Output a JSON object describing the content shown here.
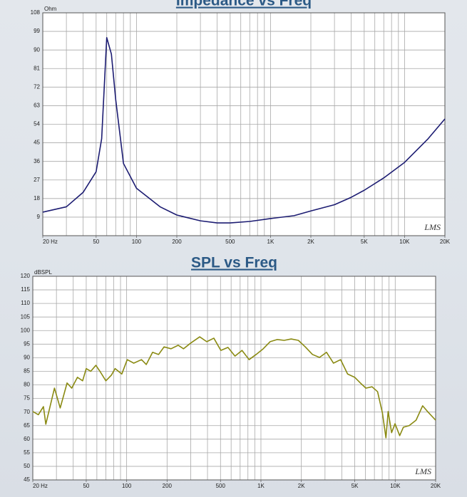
{
  "chart_data": [
    {
      "type": "line",
      "title": "Impedance vs Freq",
      "y_label": "Ohm",
      "watermark": "LMS",
      "xscale": "log",
      "xlim": [
        20,
        20000
      ],
      "xticks": [
        {
          "value": 20,
          "label": "20 Hz"
        },
        50,
        100,
        200,
        500,
        {
          "value": 1000,
          "label": "1K"
        },
        {
          "value": 2000,
          "label": "2K"
        },
        {
          "value": 5000,
          "label": "5K"
        },
        {
          "value": 10000,
          "label": "10K"
        },
        {
          "value": 20000,
          "label": "20K"
        }
      ],
      "xgrid": [
        20,
        30,
        40,
        50,
        60,
        70,
        80,
        90,
        100,
        200,
        300,
        400,
        500,
        600,
        700,
        800,
        900,
        1000,
        2000,
        3000,
        4000,
        5000,
        6000,
        7000,
        8000,
        9000,
        10000,
        20000
      ],
      "ylim": [
        0,
        108
      ],
      "yticks": [
        9,
        18,
        27,
        36,
        45,
        54,
        63,
        72,
        81,
        90,
        99,
        108
      ],
      "grid": true,
      "color": "#1c1c72",
      "x": [
        20,
        30,
        40,
        50,
        55,
        60,
        65,
        70,
        80,
        100,
        150,
        200,
        300,
        400,
        500,
        700,
        1000,
        1500,
        2000,
        3000,
        4000,
        5000,
        7000,
        10000,
        15000,
        20000
      ],
      "values": [
        11.4,
        14,
        21,
        31,
        47,
        96,
        88,
        66,
        35,
        23,
        14,
        10,
        7.2,
        6.2,
        6.2,
        6.9,
        8.3,
        9.7,
        12,
        15,
        18.6,
        22,
        28,
        35.5,
        47,
        56.6
      ]
    },
    {
      "type": "line",
      "title": "SPL vs Freq",
      "y_label": "dBSPL",
      "watermark": "LMS",
      "xscale": "log",
      "xlim": [
        20,
        20000
      ],
      "xticks": [
        {
          "value": 20,
          "label": "20 Hz"
        },
        50,
        100,
        200,
        500,
        {
          "value": 1000,
          "label": "1K"
        },
        {
          "value": 2000,
          "label": "2K"
        },
        {
          "value": 5000,
          "label": "5K"
        },
        {
          "value": 10000,
          "label": "10K"
        },
        {
          "value": 20000,
          "label": "20K"
        }
      ],
      "xgrid": [
        20,
        30,
        40,
        50,
        60,
        70,
        80,
        90,
        100,
        200,
        300,
        400,
        500,
        600,
        700,
        800,
        900,
        1000,
        2000,
        3000,
        4000,
        5000,
        6000,
        7000,
        8000,
        9000,
        10000,
        20000
      ],
      "ylim": [
        45,
        120
      ],
      "yticks": [
        45,
        50,
        55,
        60,
        65,
        70,
        75,
        80,
        85,
        90,
        95,
        100,
        105,
        110,
        115,
        120
      ],
      "grid": true,
      "color": "#8a8a12",
      "x": [
        20,
        22,
        24,
        25,
        29,
        32,
        36,
        39,
        43,
        47,
        50,
        54,
        59,
        64,
        70,
        77,
        82,
        92,
        101,
        113,
        129,
        140,
        156,
        173,
        190,
        214,
        242,
        265,
        300,
        350,
        395,
        446,
        503,
        568,
        641,
        723,
        816,
        921,
        1040,
        1170,
        1320,
        1490,
        1680,
        1900,
        2140,
        2420,
        2730,
        3080,
        3470,
        3920,
        4420,
        4990,
        5500,
        6050,
        6720,
        7390,
        8030,
        8530,
        8860,
        9400,
        9970,
        10800,
        11500,
        12700,
        14300,
        16000,
        17400,
        20000
      ],
      "values": [
        70.2,
        69,
        72,
        65.5,
        78.8,
        71.5,
        80.7,
        78.8,
        82.8,
        81.5,
        86,
        85,
        87.2,
        84.6,
        81.5,
        83.6,
        86,
        84,
        89.3,
        88,
        89.3,
        87.5,
        92,
        91.2,
        94,
        93.3,
        94.6,
        93.3,
        95.4,
        97.7,
        95.9,
        97.2,
        92.7,
        93.8,
        90.6,
        92.7,
        89.3,
        91.2,
        93.3,
        95.9,
        96.7,
        96.4,
        96.9,
        96.4,
        94,
        91.2,
        90.1,
        92,
        88,
        89.3,
        84,
        82.8,
        80.7,
        78.8,
        79.3,
        77.5,
        69.7,
        60.5,
        70.2,
        62.4,
        65.7,
        61.3,
        64.4,
        65,
        67,
        72.3,
        70.2,
        67
      ]
    }
  ]
}
